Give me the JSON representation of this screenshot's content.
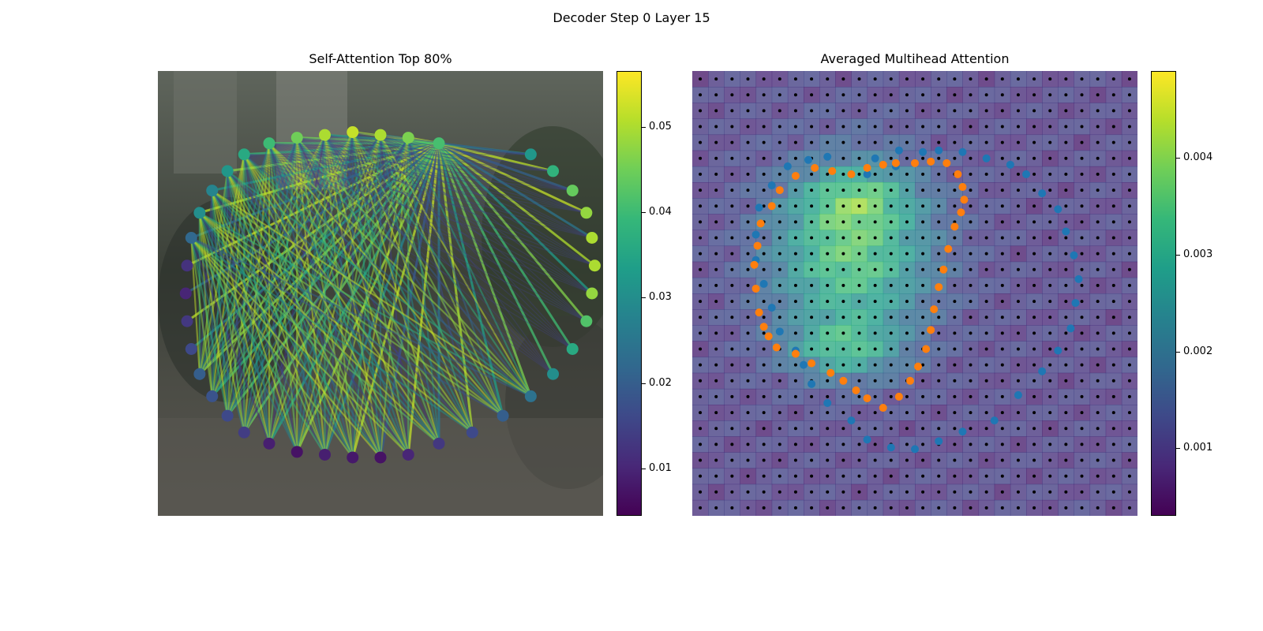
{
  "figure": {
    "suptitle": "Decoder Step 0 Layer 15"
  },
  "chart_data": [
    {
      "type": "network",
      "title": "Self-Attention Top 80%",
      "background": "street scene photo (parked cars, building, foliage)",
      "colormap": "viridis",
      "colorbar": {
        "vmin": 0.0045,
        "vmax": 0.0565,
        "ticks": [
          "0.01",
          "0.02",
          "0.03",
          "0.04",
          "0.05"
        ],
        "tick_values": [
          0.01,
          0.02,
          0.03,
          0.04,
          0.05
        ]
      },
      "nodes": {
        "count": 40,
        "x": [
          10.1,
          9.0,
          8.0,
          7.0,
          6.0,
          5.0,
          4.0,
          3.1,
          2.5,
          1.95,
          1.5,
          1.2,
          1.05,
          1.0,
          1.05,
          1.2,
          1.5,
          1.95,
          2.5,
          3.1,
          4.0,
          5.0,
          6.0,
          7.0,
          8.0,
          9.0,
          10.1,
          11.3,
          12.4,
          13.4,
          14.2,
          14.9,
          15.4,
          15.6,
          15.7,
          15.6,
          15.4,
          14.9,
          14.2,
          13.4
        ],
        "y": [
          2.6,
          2.4,
          2.3,
          2.2,
          2.3,
          2.4,
          2.6,
          3.0,
          3.6,
          4.3,
          5.1,
          6.0,
          7.0,
          8.0,
          9.0,
          10.0,
          10.9,
          11.7,
          12.4,
          13.0,
          13.4,
          13.7,
          13.8,
          13.9,
          13.9,
          13.8,
          13.4,
          13.0,
          12.4,
          11.7,
          10.9,
          10.0,
          9.0,
          8.0,
          7.0,
          6.0,
          5.1,
          4.3,
          3.6,
          3.0
        ],
        "values": [
          0.041,
          0.046,
          0.05,
          0.052,
          0.05,
          0.045,
          0.04,
          0.036,
          0.032,
          0.028,
          0.03,
          0.022,
          0.012,
          0.01,
          0.013,
          0.016,
          0.02,
          0.018,
          0.016,
          0.014,
          0.009,
          0.007,
          0.009,
          0.008,
          0.007,
          0.01,
          0.013,
          0.016,
          0.02,
          0.024,
          0.03,
          0.036,
          0.042,
          0.048,
          0.05,
          0.05,
          0.048,
          0.044,
          0.038,
          0.032
        ]
      },
      "edges_note": "lines drawn between node pairs; strongest edges converge on node 0 (upper-left of ring)"
    },
    {
      "type": "heatmap",
      "title": "Averaged Multihead Attention",
      "colormap": "viridis",
      "colorbar": {
        "vmin": 0.0003,
        "vmax": 0.0049,
        "ticks": [
          "0.001",
          "0.002",
          "0.003",
          "0.004"
        ],
        "tick_values": [
          0.001,
          0.002,
          0.003,
          0.004
        ]
      },
      "grid": {
        "rows": 28,
        "cols": 28,
        "high_region": "centered around rows 7-18, cols 4-16, peak near row 17 col 10"
      },
      "series": [
        {
          "color": "#1f77b4",
          "x": [
            12.3,
            10.5,
            11.0,
            12.5,
            14.0,
            15.0,
            16.5,
            18.0,
            19.5,
            20.5,
            21.5,
            22.5,
            23.0,
            23.5,
            23.8,
            23.6,
            23.3,
            22.5,
            21.5,
            20.0,
            18.5,
            16.5,
            15.0,
            13.5,
            12.0,
            10.5,
            9.5,
            8.0,
            7.0,
            6.5,
            6.0,
            5.0,
            4.5,
            4.0,
            3.5,
            3.5,
            3.7,
            4.5,
            5.5,
            6.8,
            8.0
          ],
          "y": [
            5.5,
            6.0,
            5.0,
            4.5,
            4.6,
            4.5,
            4.6,
            5.0,
            5.4,
            6.0,
            7.2,
            8.2,
            9.6,
            11.1,
            12.6,
            14.1,
            15.7,
            17.1,
            18.4,
            19.9,
            21.5,
            22.2,
            22.8,
            23.3,
            23.2,
            22.7,
            21.5,
            20.4,
            19.2,
            18.0,
            17.1,
            15.9,
            14.4,
            12.9,
            11.4,
            9.8,
            8.1,
            6.7,
            5.5,
            5.1,
            4.9
          ]
        },
        {
          "color": "#ff7f0e",
          "x": [
            9.5,
            10.5,
            11.5,
            12.3,
            13.5,
            14.5,
            15.5,
            16.2,
            16.5,
            16.6,
            16.4,
            16.0,
            15.6,
            15.3,
            15.0,
            14.7,
            14.5,
            14.2,
            13.7,
            13.2,
            12.5,
            11.5,
            10.5,
            9.8,
            9.0,
            8.2,
            7.0,
            6.0,
            4.8,
            4.3,
            4.0,
            3.7,
            3.5,
            3.4,
            3.6,
            3.8,
            4.5,
            5.0,
            6.0,
            7.2,
            8.3
          ],
          "y": [
            6.0,
            5.6,
            5.4,
            5.3,
            5.3,
            5.2,
            5.3,
            6.0,
            6.8,
            7.6,
            8.4,
            9.3,
            10.7,
            12.0,
            13.1,
            14.5,
            15.8,
            17.0,
            18.1,
            19.0,
            20.0,
            20.7,
            20.1,
            19.6,
            19.0,
            18.5,
            17.9,
            17.3,
            16.9,
            16.2,
            15.6,
            14.7,
            13.2,
            11.7,
            10.5,
            9.1,
            8.0,
            7.0,
            6.1,
            5.6,
            5.8
          ]
        }
      ],
      "small_points": {
        "color": "#000000",
        "layout": "regular 28x28 grid"
      }
    }
  ]
}
